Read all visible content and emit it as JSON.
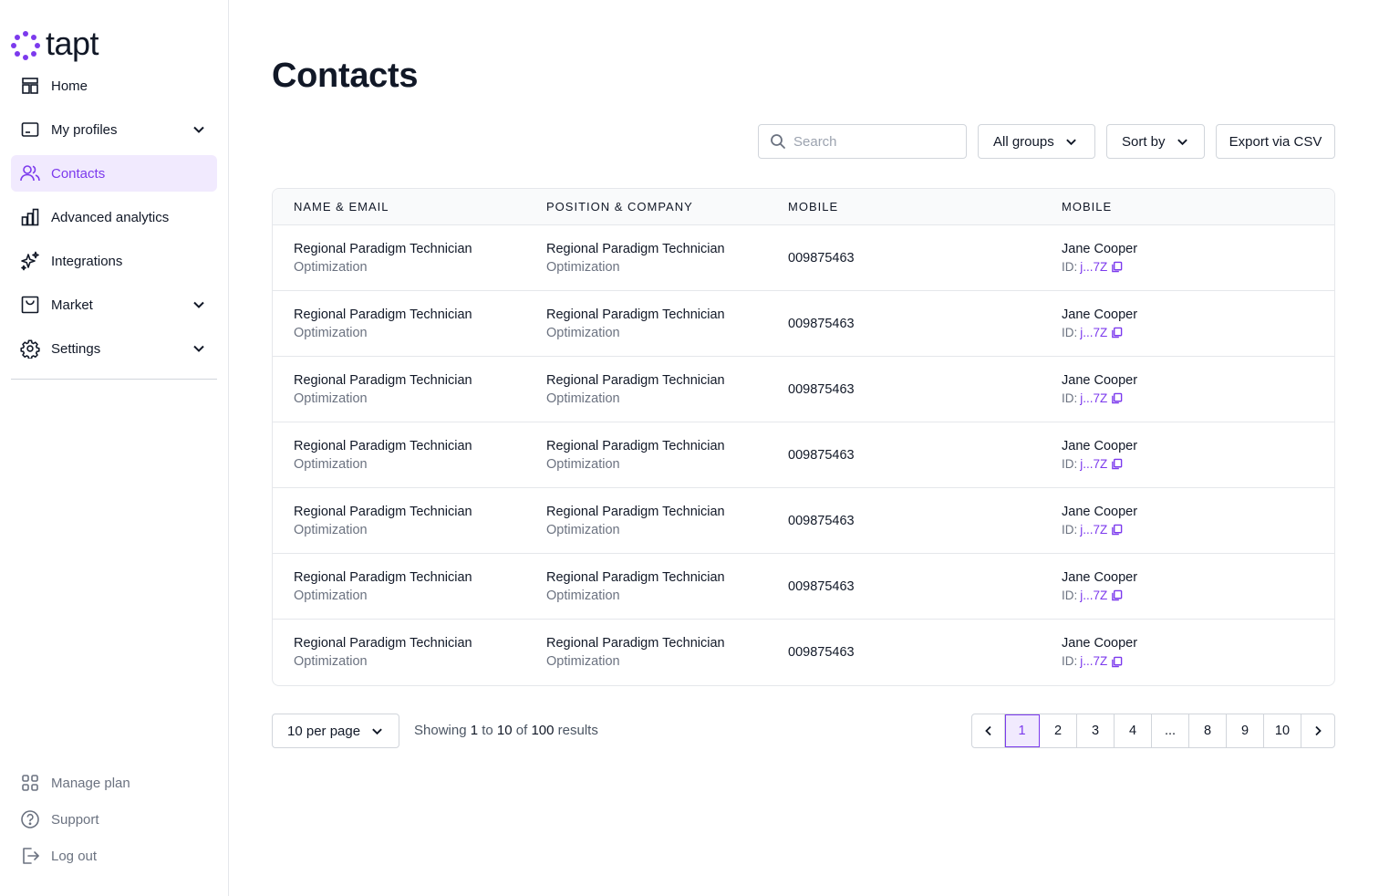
{
  "app": {
    "logo_text": "tapt"
  },
  "sidebar": {
    "items": [
      {
        "label": "Home",
        "icon": "home-layout-icon",
        "has_chevron": false,
        "active": false
      },
      {
        "label": "My profiles",
        "icon": "profile-card-icon",
        "has_chevron": true,
        "active": false
      },
      {
        "label": "Contacts",
        "icon": "users-icon",
        "has_chevron": false,
        "active": true
      },
      {
        "label": "Advanced analytics",
        "icon": "bar-chart-icon",
        "has_chevron": false,
        "active": false
      },
      {
        "label": "Integrations",
        "icon": "sparkles-icon",
        "has_chevron": false,
        "active": false
      },
      {
        "label": "Market",
        "icon": "shopping-bag-icon",
        "has_chevron": true,
        "active": false
      },
      {
        "label": "Settings",
        "icon": "gear-icon",
        "has_chevron": true,
        "active": false
      }
    ],
    "bottom": [
      {
        "label": "Manage plan",
        "icon": "grid-icon"
      },
      {
        "label": "Support",
        "icon": "question-circle-icon"
      },
      {
        "label": "Log out",
        "icon": "logout-icon"
      }
    ]
  },
  "main": {
    "title": "Contacts",
    "search": {
      "placeholder": "Search",
      "value": ""
    },
    "groups_label": "All groups",
    "sort_label": "Sort by",
    "export_label": "Export via CSV",
    "columns": [
      "NAME & EMAIL",
      "POSITION & COMPANY",
      "MOBILE",
      "MOBILE"
    ],
    "rows": [
      {
        "name": "Regional Paradigm Technician",
        "email": "Optimization",
        "position": "Regional Paradigm Technician",
        "company": "Optimization",
        "mobile": "009875463",
        "contact": "Jane Cooper",
        "id_label": "ID:",
        "id_value": "j...7Z"
      },
      {
        "name": "Regional Paradigm Technician",
        "email": "Optimization",
        "position": "Regional Paradigm Technician",
        "company": "Optimization",
        "mobile": "009875463",
        "contact": "Jane Cooper",
        "id_label": "ID:",
        "id_value": "j...7Z"
      },
      {
        "name": "Regional Paradigm Technician",
        "email": "Optimization",
        "position": "Regional Paradigm Technician",
        "company": "Optimization",
        "mobile": "009875463",
        "contact": "Jane Cooper",
        "id_label": "ID:",
        "id_value": "j...7Z"
      },
      {
        "name": "Regional Paradigm Technician",
        "email": "Optimization",
        "position": "Regional Paradigm Technician",
        "company": "Optimization",
        "mobile": "009875463",
        "contact": "Jane Cooper",
        "id_label": "ID:",
        "id_value": "j...7Z"
      },
      {
        "name": "Regional Paradigm Technician",
        "email": "Optimization",
        "position": "Regional Paradigm Technician",
        "company": "Optimization",
        "mobile": "009875463",
        "contact": "Jane Cooper",
        "id_label": "ID:",
        "id_value": "j...7Z"
      },
      {
        "name": "Regional Paradigm Technician",
        "email": "Optimization",
        "position": "Regional Paradigm Technician",
        "company": "Optimization",
        "mobile": "009875463",
        "contact": "Jane Cooper",
        "id_label": "ID:",
        "id_value": "j...7Z"
      },
      {
        "name": "Regional Paradigm Technician",
        "email": "Optimization",
        "position": "Regional Paradigm Technician",
        "company": "Optimization",
        "mobile": "009875463",
        "contact": "Jane Cooper",
        "id_label": "ID:",
        "id_value": "j...7Z"
      }
    ],
    "footer": {
      "per_page_label": "10 per page",
      "showing_prefix": "Showing",
      "from": "1",
      "to_word": "to",
      "to": "10",
      "of_word": "of",
      "total": "100",
      "results_word": "results",
      "pages": [
        "1",
        "2",
        "3",
        "4",
        "...",
        "8",
        "9",
        "10"
      ],
      "current_page": "1"
    }
  },
  "colors": {
    "accent": "#7c3aed",
    "active_bg": "#f1eafe",
    "border": "#d1d5db"
  }
}
